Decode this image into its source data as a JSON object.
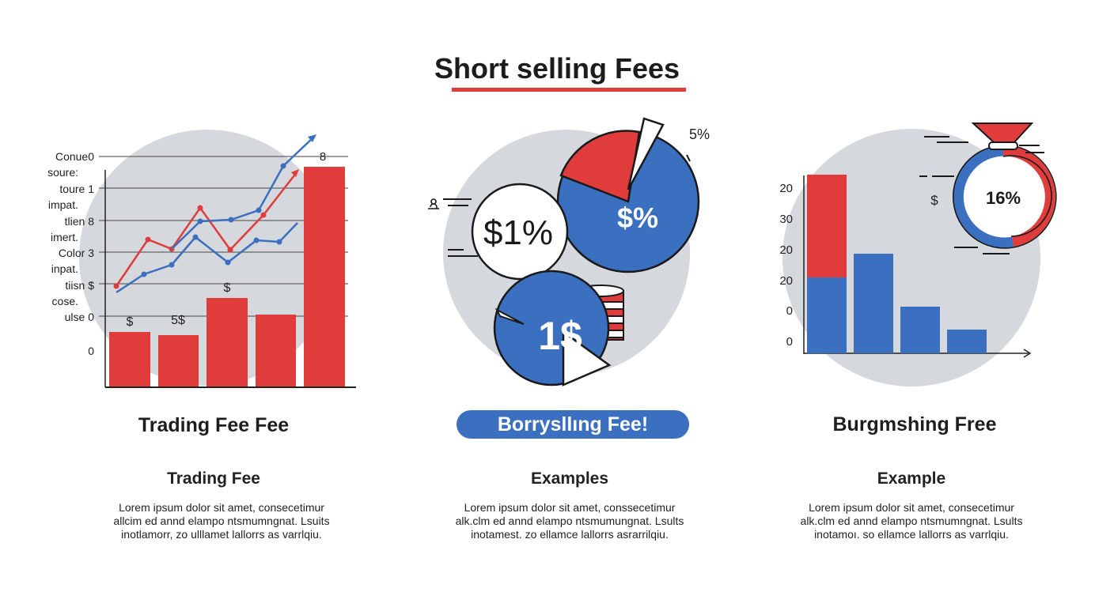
{
  "title": "Short selling Fees",
  "colors": {
    "red": "#e03c3c",
    "blue": "#3b6fc0",
    "circle": "#d5d8dc",
    "ink": "#1f1f1f"
  },
  "panel1": {
    "heading": "Trading Fee Fee",
    "left_labels": [
      "Conue0",
      "soure:",
      "toure 1",
      "impat.",
      "tlien 8",
      "imert.",
      "Color 3",
      "inpat.",
      "tiisn $",
      "cose.",
      "ulse 0",
      "0"
    ],
    "bar_labels": [
      "$",
      "5$",
      "$",
      "",
      ""
    ],
    "line_end_label": "8",
    "subheading": "Trading Fee",
    "body": [
      "Lorem ipsum dolor sit amet, consecetimur",
      "allcim ed annd elampo ntsmumngnat. Lsuits",
      "inotlamorr, zo ulllamet lallorrs as varrlqiu."
    ]
  },
  "panel2": {
    "pie_top_label": "$%",
    "pie_top_pct": "5%",
    "white_circle_label": "$1%",
    "pie_bottom_label": "1$",
    "pill": "Borrysllıng Fee!",
    "subheading": "Examples",
    "body": [
      "Lorem ipsum dolor sit amet, conssecetimur",
      "alk.clm ed annd elampo ntsmumungnat. Lsults",
      "inotamest. zo  ellamce lallorrs asrarrilqiu."
    ]
  },
  "panel3": {
    "heading": "Burgmshing Free",
    "y_labels": [
      "20",
      "30",
      "20",
      "20",
      "0",
      "0"
    ],
    "gauge_value": "16%",
    "dollar_label": "$",
    "subheading": "Example",
    "body": [
      "Lorem ipsum dolor sit amet, consecetimur",
      "alk.clm ed annd elampo ntsmumngnat. Lsults",
      "inotamoı. so  ellamce lallorrs as varrlqiu."
    ]
  }
}
